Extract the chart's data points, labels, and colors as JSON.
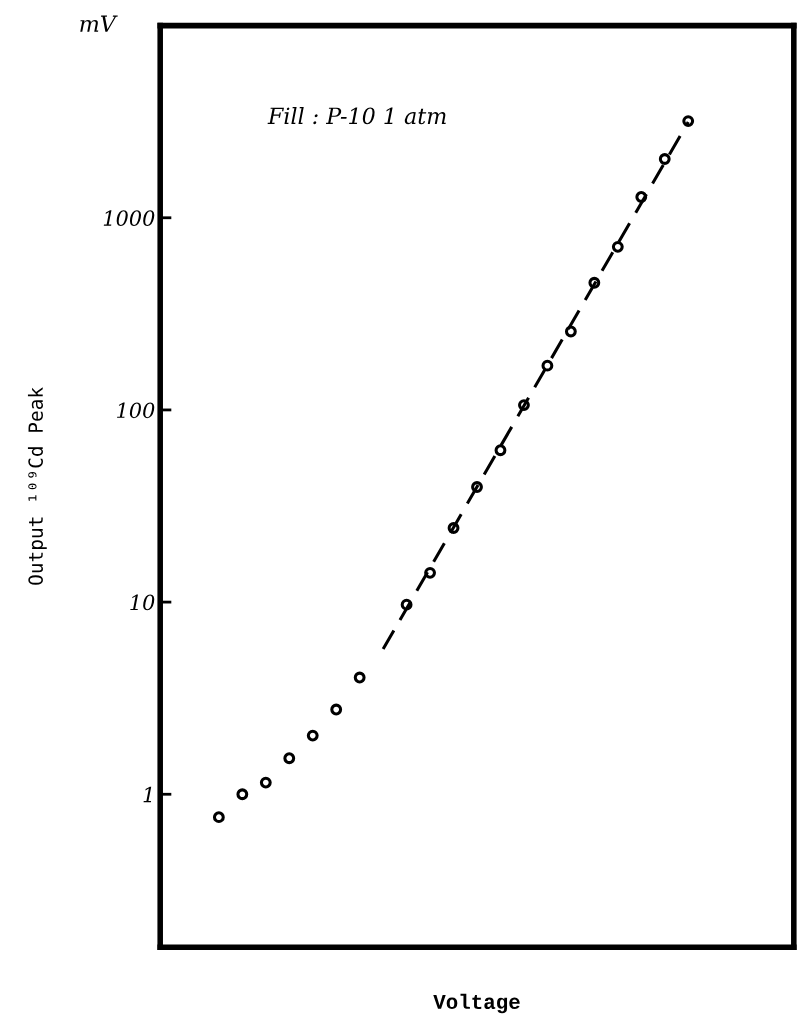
{
  "chart_data": {
    "type": "scatter",
    "xlabel": "Voltage",
    "ylabel": "Output ¹⁰⁹Cd Peak",
    "annotations": [
      "mV",
      "Fill : P-10 1 atm"
    ],
    "categories": [
      null,
      null,
      null,
      null,
      null,
      null,
      null,
      null,
      null,
      null,
      null,
      null,
      null,
      null,
      null,
      null,
      null,
      null,
      null,
      null,
      null,
      null,
      null,
      null,
      null,
      null,
      null
    ],
    "series": [
      {
        "color": "#000000",
        "marker": "circle",
        "values": [
          null,
          null,
          0.76,
          1.0,
          1.15,
          1.54,
          2.02,
          2.76,
          4.05,
          null,
          9.7,
          14.2,
          24.3,
          39.7,
          61.7,
          106,
          170,
          256,
          459,
          706,
          1283,
          2022,
          3185,
          null,
          null,
          null,
          null
        ]
      },
      {
        "type": "line",
        "color": "#000000",
        "line_style": "dashed",
        "values": [
          null,
          null,
          null,
          null,
          null,
          null,
          null,
          null,
          null,
          5.7,
          null,
          null,
          null,
          null,
          null,
          null,
          null,
          null,
          null,
          null,
          null,
          null,
          3150,
          null,
          null,
          null,
          null
        ]
      }
    ],
    "log": "y",
    "ylim": [
      0.16,
      10000
    ],
    "yticks": [
      1,
      10,
      100,
      1000
    ],
    "grid": false,
    "legend": false
  }
}
